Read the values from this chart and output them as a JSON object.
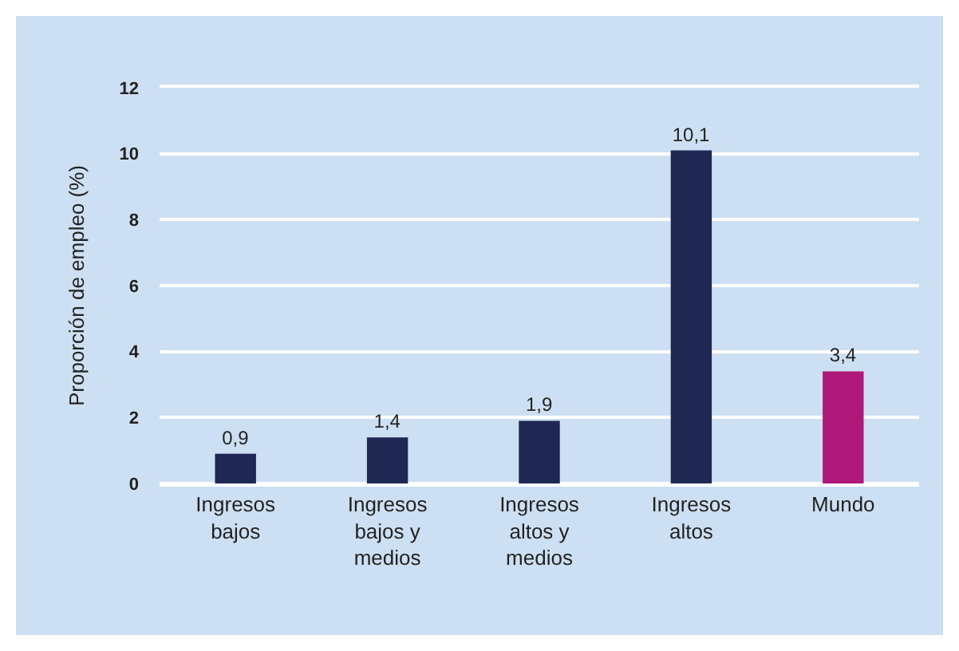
{
  "chart_data": {
    "type": "bar",
    "ylabel": "Proporción de empleo (%)",
    "categories": [
      "Ingresos bajos",
      "Ingresos bajos y medios",
      "Ingresos altos y medios",
      "Ingresos altos",
      "Mundo"
    ],
    "values": [
      0.9,
      1.4,
      1.9,
      10.1,
      3.4
    ],
    "colors": [
      "#1f2753",
      "#1f2753",
      "#1f2753",
      "#1f2753",
      "#b0187a"
    ],
    "value_labels": [
      "0,9",
      "1,4",
      "1,9",
      "10,1",
      "3,4"
    ],
    "ylim": [
      0,
      12
    ],
    "yticks": [
      0,
      2,
      4,
      6,
      8,
      10,
      12
    ],
    "grid": "y"
  }
}
